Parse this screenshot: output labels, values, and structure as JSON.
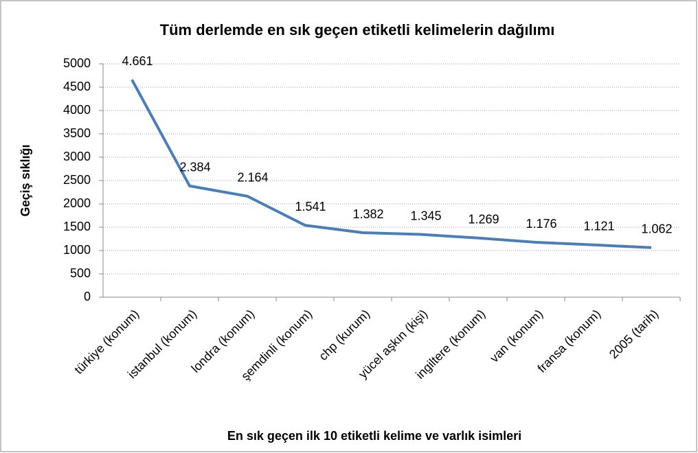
{
  "chart_data": {
    "type": "line",
    "title": "Tüm derlemde en sık geçen etiketli kelimelerin dağılımı",
    "x_label": "En sık geçen ilk 10 etiketli kelime ve varlık isimleri",
    "y_label": "Geçiş sıklığı",
    "categories": [
      "türkiye (konum)",
      "istanbul (konum)",
      "londra (konum)",
      "şemdinli (konum)",
      "chp (kurum)",
      "yücel aşkın (kişi)",
      "ingiltere (konum)",
      "van (konum)",
      "fransa (konum)",
      "2005 (tarih)"
    ],
    "series": [
      {
        "name": "Geçiş sıklığı",
        "color": "#4a7ebb",
        "values": [
          4661,
          2384,
          2164,
          1541,
          1382,
          1345,
          1269,
          1176,
          1121,
          1062
        ],
        "value_labels": [
          "4.661",
          "2.384",
          "2.164",
          "1.541",
          "1.382",
          "1.345",
          "1.269",
          "1.176",
          "1.121",
          "1.062"
        ]
      }
    ],
    "ylim": [
      0,
      5000
    ],
    "yticks": [
      0,
      500,
      1000,
      1500,
      2000,
      2500,
      3000,
      3500,
      4000,
      4500,
      5000
    ],
    "grid": true
  }
}
